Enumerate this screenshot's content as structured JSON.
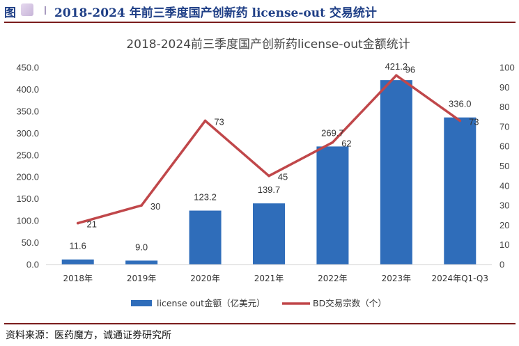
{
  "header": {
    "figure_label": "图",
    "title": "2018-2024 年前三季度国产创新药 license-out 交易统计"
  },
  "source": "资料来源：医药魔方，诚通证券研究所",
  "colors": {
    "bar": "#2f6dba",
    "line": "#c0474a",
    "accent": "#1f3f86"
  },
  "chart_data": {
    "type": "bar",
    "title": "2018-2024前三季度国产创新药license-out金额统计",
    "categories": [
      "2018年",
      "2019年",
      "2020年",
      "2021年",
      "2022年",
      "2023年",
      "2024年Q1-Q3"
    ],
    "series": [
      {
        "name": "license out金额（亿美元）",
        "type": "bar",
        "axis": "left",
        "values": [
          11.6,
          9.0,
          123.2,
          139.7,
          269.7,
          421.2,
          336.0
        ]
      },
      {
        "name": "BD交易宗数（个）",
        "type": "line",
        "axis": "right",
        "values": [
          21,
          30,
          73,
          45,
          62,
          96,
          73
        ]
      }
    ],
    "ylim_left": [
      0,
      450
    ],
    "yticks_left": [
      "0.0",
      "50.0",
      "100.0",
      "150.0",
      "200.0",
      "250.0",
      "300.0",
      "350.0",
      "400.0",
      "450.0"
    ],
    "ylim_right": [
      0,
      100
    ],
    "yticks_right": [
      "0",
      "10",
      "20",
      "30",
      "40",
      "50",
      "60",
      "70",
      "80",
      "90",
      "100"
    ],
    "bar_labels": [
      "11.6",
      "9.0",
      "123.2",
      "139.7",
      "269.7",
      "421.2",
      "336.0"
    ],
    "line_labels": [
      "21",
      "30",
      "73",
      "45",
      "62",
      "96",
      "73"
    ],
    "grid": false,
    "legend_position": "bottom"
  }
}
